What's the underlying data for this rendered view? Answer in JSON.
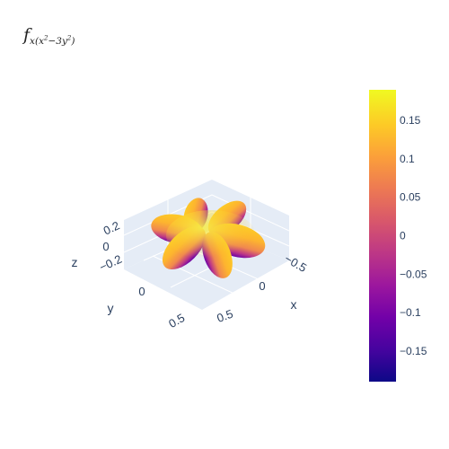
{
  "title": {
    "base": "f",
    "subscript_pre": "x(x",
    "sup1": "2",
    "subscript_mid": "−3y",
    "sup2": "2",
    "subscript_post": ")"
  },
  "chart_data": {
    "type": "surface",
    "title": "f_{x(x^2-3y^2)}",
    "function": "real cubic harmonic x(x^2 - 3y^2), six-lobed",
    "lobes": 6,
    "color_range": [
      -0.19,
      0.19
    ],
    "colorscale": "Plasma",
    "colorbar": {
      "ticks": [
        0.15,
        0.1,
        0.05,
        0,
        -0.05,
        -0.1,
        -0.15
      ],
      "tick_labels": [
        "0.15",
        "0.1",
        "0.05",
        "0",
        "−0.05",
        "−0.1",
        "−0.15"
      ]
    },
    "axes": {
      "x": {
        "title": "x",
        "tick_labels": [
          "−0.5",
          "0",
          "0.5"
        ]
      },
      "y": {
        "title": "y",
        "tick_labels": [
          "0",
          "0.5"
        ]
      },
      "z": {
        "title": "z",
        "tick_labels": [
          "0.2",
          "0",
          "−0.2"
        ]
      }
    },
    "grid": true
  },
  "colors": {
    "scene_background": "#e5ecf6",
    "axis_text": "#2a3f5f",
    "plasma": [
      "#0d0887",
      "#46039f",
      "#7201a8",
      "#9c179e",
      "#bd3786",
      "#d8576b",
      "#ed7953",
      "#fb9f3a",
      "#fdca26",
      "#f0f921"
    ]
  }
}
